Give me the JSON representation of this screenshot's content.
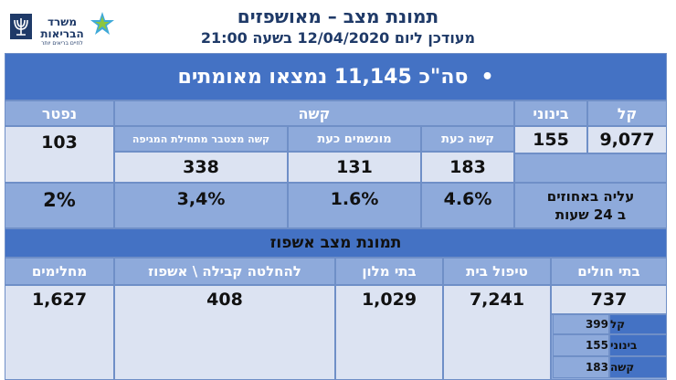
{
  "header": {
    "title": "תמונת מצב – מאושפזים",
    "subtitle": "מעודכן ליום 12/04/2020 בשעה 21:00",
    "logo_text": "משרד הבריאות",
    "logo_tagline": "לחיים בריאים יותר"
  },
  "total": {
    "bullet": "•",
    "text": "סה\"כ 11,145 נמצאו מאומתים"
  },
  "severity": {
    "mild_label": "קל",
    "moderate_label": "בינוני",
    "severe_label": "קשה",
    "deceased_label": "נפטר",
    "severe_now_label": "קשה כעת",
    "ventilated_label": "מונשמים כעת",
    "cumulative_label": "קשה מצטבר מתחילת המגיפה",
    "mild_value": "9,077",
    "moderate_value": "155",
    "severe_now_value": "183",
    "ventilated_value": "131",
    "cumulative_value": "338",
    "deceased_value": "103",
    "rise_label_1": "עליה באחוזים",
    "rise_label_2": "ב 24 שעות",
    "severe_now_pct": "4.6%",
    "ventilated_pct": "1.6%",
    "cumulative_pct": "3,4%",
    "deceased_pct": "2%"
  },
  "hospitalization": {
    "title": "תמונת מצב אשפוז",
    "hospitals_label": "בתי חולים",
    "home_care_label": "טיפול בית",
    "hotels_label": "בתי מלון",
    "pending_label": "להחלטה קבילה \\ אשפוז",
    "recovered_label": "מחלימים",
    "hospitals_value": "737",
    "home_care_value": "7,241",
    "hotels_value": "1,029",
    "pending_value": "408",
    "recovered_value": "1,627",
    "breakdown": [
      {
        "label": "קל",
        "value": "399"
      },
      {
        "label": "בינוני",
        "value": "155"
      },
      {
        "label": "קשה",
        "value": "183"
      }
    ]
  },
  "colors": {
    "band": "#4472c4",
    "header_cell": "#8eaadb",
    "value_cell": "#dce3f2",
    "title_text": "#1f3a68"
  }
}
